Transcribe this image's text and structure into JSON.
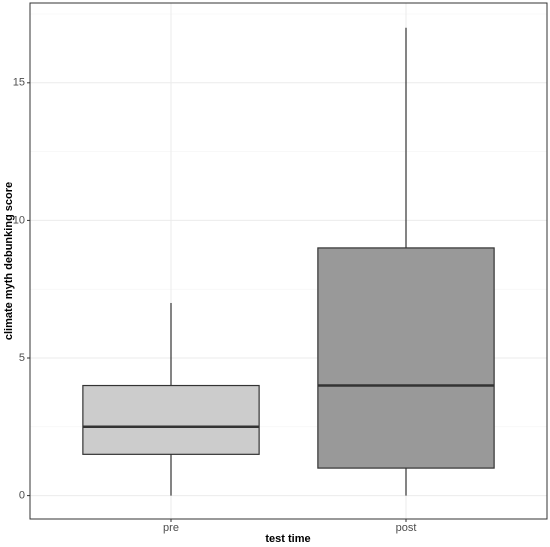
{
  "chart_data": {
    "type": "box",
    "x_label": "test time",
    "y_label": "climate myth debunking score",
    "categories": [
      "pre",
      "post"
    ],
    "boxes": [
      {
        "min": 0,
        "q1": 1.5,
        "median": 2.5,
        "q3": 4,
        "max": 7
      },
      {
        "min": 0,
        "q1": 1,
        "median": 4,
        "q3": 9,
        "max": 17
      }
    ],
    "colors": [
      "#cccccc",
      "#999999"
    ],
    "ylim": [
      -0.85,
      17.9
    ],
    "yticks": [
      0,
      5,
      10,
      15
    ],
    "grid": true
  }
}
